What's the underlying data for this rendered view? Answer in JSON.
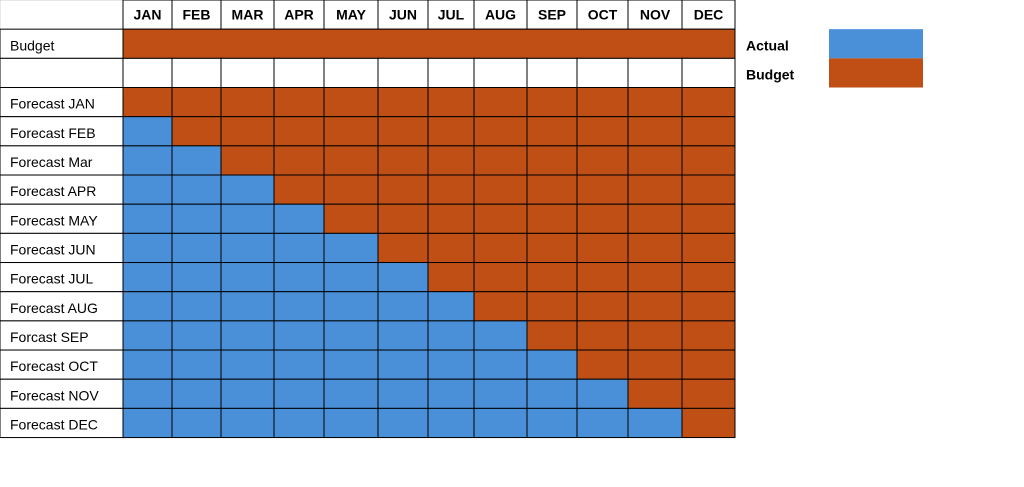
{
  "header": {
    "months": [
      "JAN",
      "FEB",
      "MAR",
      "APR",
      "MAY",
      "JUN",
      "JUL",
      "AUG",
      "SEP",
      "OCT",
      "NOV",
      "DEC"
    ]
  },
  "budget_row": {
    "label": "Budget",
    "color": "#c04f15"
  },
  "forecast_rows": [
    {
      "label": "Forecast JAN",
      "cells": [
        "#c04f15",
        "#c04f15",
        "#c04f15",
        "#c04f15",
        "#c04f15",
        "#c04f15",
        "#c04f15",
        "#c04f15",
        "#c04f15",
        "#c04f15",
        "#c04f15",
        "#c04f15"
      ]
    },
    {
      "label": "Forecast FEB",
      "cells": [
        "#4a90d9",
        "#c04f15",
        "#c04f15",
        "#c04f15",
        "#c04f15",
        "#c04f15",
        "#c04f15",
        "#c04f15",
        "#c04f15",
        "#c04f15",
        "#c04f15",
        "#c04f15"
      ]
    },
    {
      "label": "Forecast Mar",
      "cells": [
        "#4a90d9",
        "#4a90d9",
        "#c04f15",
        "#c04f15",
        "#c04f15",
        "#c04f15",
        "#c04f15",
        "#c04f15",
        "#c04f15",
        "#c04f15",
        "#c04f15",
        "#c04f15"
      ]
    },
    {
      "label": "Forecast APR",
      "cells": [
        "#4a90d9",
        "#4a90d9",
        "#4a90d9",
        "#c04f15",
        "#c04f15",
        "#c04f15",
        "#c04f15",
        "#c04f15",
        "#c04f15",
        "#c04f15",
        "#c04f15",
        "#c04f15"
      ]
    },
    {
      "label": "Forecast MAY",
      "cells": [
        "#4a90d9",
        "#4a90d9",
        "#4a90d9",
        "#4a90d9",
        "#c04f15",
        "#c04f15",
        "#c04f15",
        "#c04f15",
        "#c04f15",
        "#c04f15",
        "#c04f15",
        "#c04f15"
      ]
    },
    {
      "label": "Forecast JUN",
      "cells": [
        "#4a90d9",
        "#4a90d9",
        "#4a90d9",
        "#4a90d9",
        "#4a90d9",
        "#c04f15",
        "#c04f15",
        "#c04f15",
        "#c04f15",
        "#c04f15",
        "#c04f15",
        "#c04f15"
      ]
    },
    {
      "label": "Forecast JUL",
      "cells": [
        "#4a90d9",
        "#4a90d9",
        "#4a90d9",
        "#4a90d9",
        "#4a90d9",
        "#4a90d9",
        "#c04f15",
        "#c04f15",
        "#c04f15",
        "#c04f15",
        "#c04f15",
        "#c04f15"
      ]
    },
    {
      "label": "Forecast AUG",
      "cells": [
        "#4a90d9",
        "#4a90d9",
        "#4a90d9",
        "#4a90d9",
        "#4a90d9",
        "#4a90d9",
        "#4a90d9",
        "#c04f15",
        "#c04f15",
        "#c04f15",
        "#c04f15",
        "#c04f15"
      ]
    },
    {
      "label": "Forcast SEP",
      "cells": [
        "#4a90d9",
        "#4a90d9",
        "#4a90d9",
        "#4a90d9",
        "#4a90d9",
        "#4a90d9",
        "#4a90d9",
        "#4a90d9",
        "#c04f15",
        "#c04f15",
        "#c04f15",
        "#c04f15"
      ]
    },
    {
      "label": "Forecast OCT",
      "cells": [
        "#4a90d9",
        "#4a90d9",
        "#4a90d9",
        "#4a90d9",
        "#4a90d9",
        "#4a90d9",
        "#4a90d9",
        "#4a90d9",
        "#4a90d9",
        "#c04f15",
        "#c04f15",
        "#c04f15"
      ]
    },
    {
      "label": "Forecast NOV",
      "cells": [
        "#4a90d9",
        "#4a90d9",
        "#4a90d9",
        "#4a90d9",
        "#4a90d9",
        "#4a90d9",
        "#4a90d9",
        "#4a90d9",
        "#4a90d9",
        "#4a90d9",
        "#c04f15",
        "#c04f15"
      ]
    },
    {
      "label": "Forecast DEC",
      "cells": [
        "#4a90d9",
        "#4a90d9",
        "#4a90d9",
        "#4a90d9",
        "#4a90d9",
        "#4a90d9",
        "#4a90d9",
        "#4a90d9",
        "#4a90d9",
        "#4a90d9",
        "#4a90d9",
        "#c04f15"
      ]
    }
  ],
  "legend": [
    {
      "label": "Actual",
      "color": "#4a90d9"
    },
    {
      "label": "Budget",
      "color": "#c04f15"
    }
  ]
}
